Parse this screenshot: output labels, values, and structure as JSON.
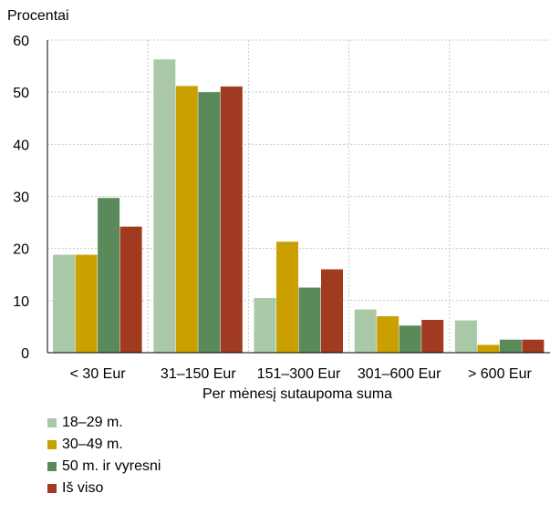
{
  "chart_data": {
    "type": "bar",
    "ylabel": "Procentai",
    "xlabel": "Per mėnesį sutaupoma suma",
    "ylim": [
      0,
      60
    ],
    "yticks": [
      0,
      10,
      20,
      30,
      40,
      50,
      60
    ],
    "categories": [
      "< 30 Eur",
      "31–150 Eur",
      "151–300 Eur",
      "301–600 Eur",
      "> 600 Eur"
    ],
    "grid": true,
    "legend_position": "bottom-left",
    "series": [
      {
        "name": "18–29 m.",
        "color": "#a8c8a8",
        "values": [
          18.8,
          56.3,
          10.5,
          8.3,
          6.2
        ]
      },
      {
        "name": "30–49 m.",
        "color": "#c9a000",
        "values": [
          18.8,
          51.2,
          21.3,
          7.0,
          1.5
        ]
      },
      {
        "name": "50 m. ir vyresni",
        "color": "#5a8a5a",
        "values": [
          29.7,
          50.0,
          12.5,
          5.2,
          2.5
        ]
      },
      {
        "name": "Iš viso",
        "color": "#a03a20",
        "values": [
          24.2,
          51.1,
          16.0,
          6.3,
          2.5
        ]
      }
    ]
  }
}
